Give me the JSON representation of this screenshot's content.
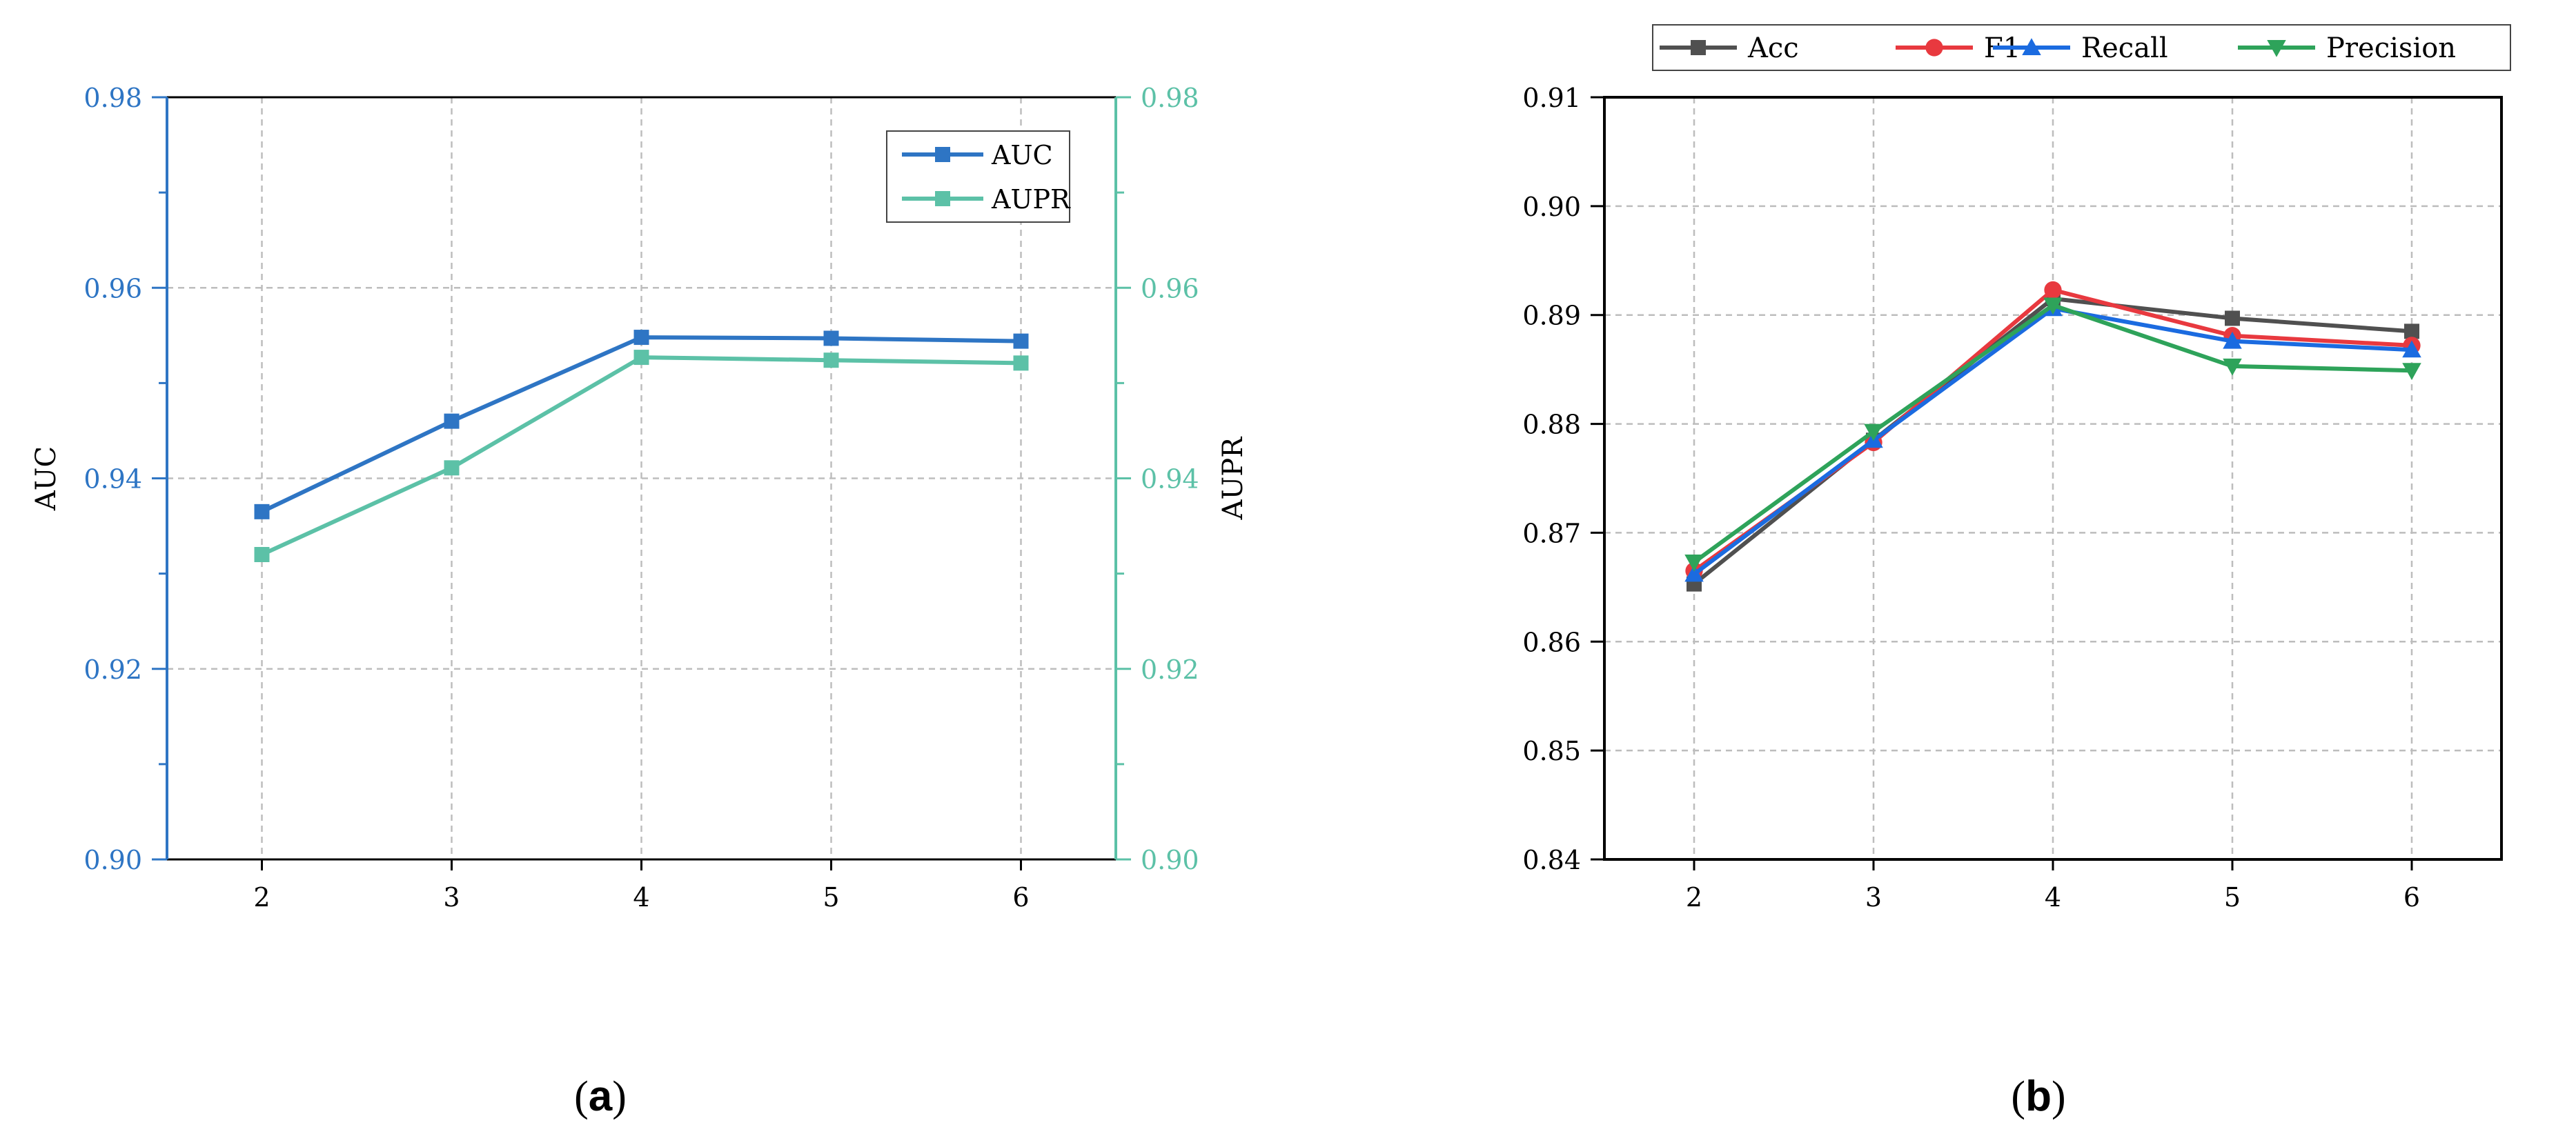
{
  "colors": {
    "auc": "#2e75c4",
    "aupr": "#5cc1a7",
    "acc": "#505050",
    "f1": "#e8393f",
    "recall": "#1b6be0",
    "precision": "#2ea35a",
    "grid": "#bdbdbd",
    "axis_dark": "#000000"
  },
  "captions": {
    "a": "a",
    "b": "b",
    "open": "(",
    "close": ")"
  },
  "chart_data": [
    {
      "type": "line",
      "panel": "a",
      "x": [
        2,
        3,
        4,
        5,
        6
      ],
      "xticks": [
        "2",
        "3",
        "4",
        "5",
        "6"
      ],
      "xlim": [
        1.5,
        6.5
      ],
      "ylabel": "AUC",
      "ylabel_right": "AUPR",
      "ylim": [
        0.9,
        0.98
      ],
      "yticks": [
        "0.90",
        "0.92",
        "0.94",
        "0.96",
        "0.98"
      ],
      "yticks_right": [
        "0.90",
        "0.92",
        "0.94",
        "0.96",
        "0.98"
      ],
      "legend_position": "top-right",
      "series": [
        {
          "name": "AUC",
          "axis": "left",
          "marker": "square",
          "values": [
            0.9365,
            0.946,
            0.9548,
            0.9547,
            0.9544
          ]
        },
        {
          "name": "AUPR",
          "axis": "right",
          "marker": "square",
          "values": [
            0.932,
            0.9411,
            0.9527,
            0.9524,
            0.9521
          ]
        }
      ]
    },
    {
      "type": "line",
      "panel": "b",
      "x": [
        2,
        3,
        4,
        5,
        6
      ],
      "xticks": [
        "2",
        "3",
        "4",
        "5",
        "6"
      ],
      "xlim": [
        1.5,
        6.5
      ],
      "ylim": [
        0.84,
        0.91
      ],
      "yticks": [
        "0.84",
        "0.85",
        "0.86",
        "0.87",
        "0.88",
        "0.89",
        "0.90",
        "0.91"
      ],
      "legend_position": "top",
      "series": [
        {
          "name": "Acc",
          "marker": "square",
          "values": [
            0.8653,
            0.8785,
            0.8915,
            0.8897,
            0.8885
          ]
        },
        {
          "name": "F1",
          "marker": "circle",
          "values": [
            0.8665,
            0.8783,
            0.8923,
            0.8881,
            0.8872
          ]
        },
        {
          "name": "Recall",
          "marker": "triangle-up",
          "values": [
            0.8662,
            0.8785,
            0.8906,
            0.8876,
            0.8868
          ]
        },
        {
          "name": "Precision",
          "marker": "triangle-down",
          "values": [
            0.8673,
            0.8793,
            0.8909,
            0.8853,
            0.8849
          ]
        }
      ]
    }
  ]
}
